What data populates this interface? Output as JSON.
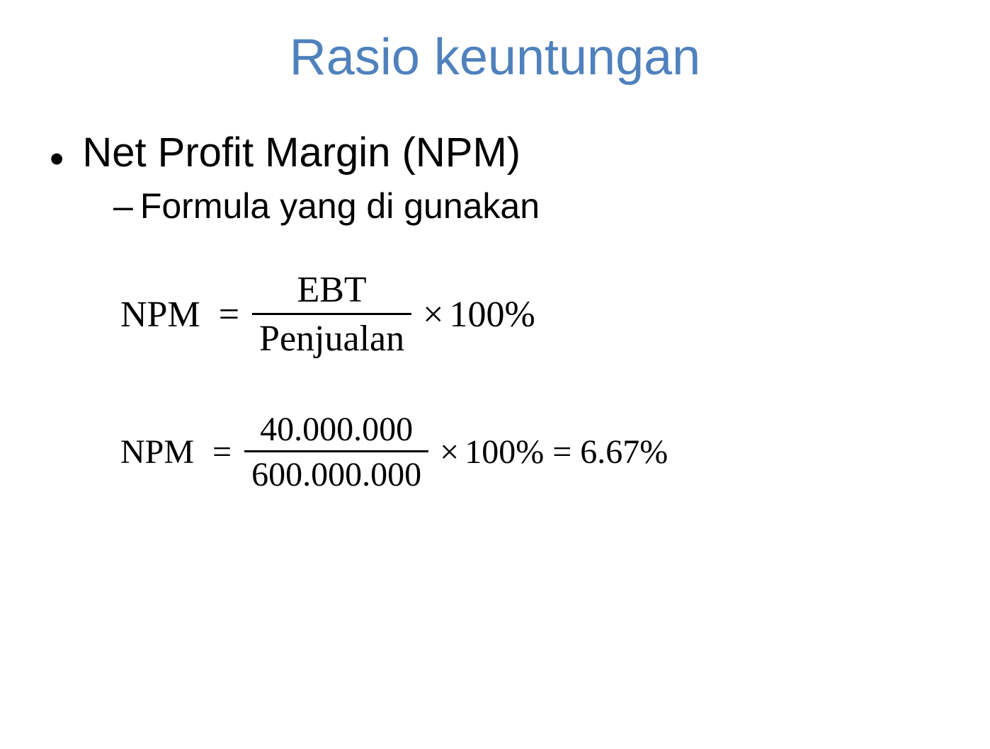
{
  "slide": {
    "title": "Rasio keuntungan",
    "title_color": "#4f81bd",
    "title_fontsize": 72,
    "body_color": "#000000",
    "level1_fontsize": 58,
    "level2_fontsize": 50,
    "bullet_level1": {
      "text": "Net Profit Margin (NPM)"
    },
    "bullet_level2": {
      "text": "Formula yang di gunakan"
    },
    "formula1": {
      "lhs": "NPM",
      "equals": "=",
      "numerator": "EBT",
      "denominator": "Penjualan",
      "times": "×",
      "tail": "100%",
      "font_family": "Times New Roman",
      "fontsize": 52
    },
    "formula2": {
      "lhs": "NPM",
      "equals": "=",
      "numerator": "40.000.000",
      "denominator": "600.000.000",
      "times": "×",
      "tail": "100% = 6.67%",
      "font_family": "Times New Roman",
      "fontsize": 48
    }
  }
}
